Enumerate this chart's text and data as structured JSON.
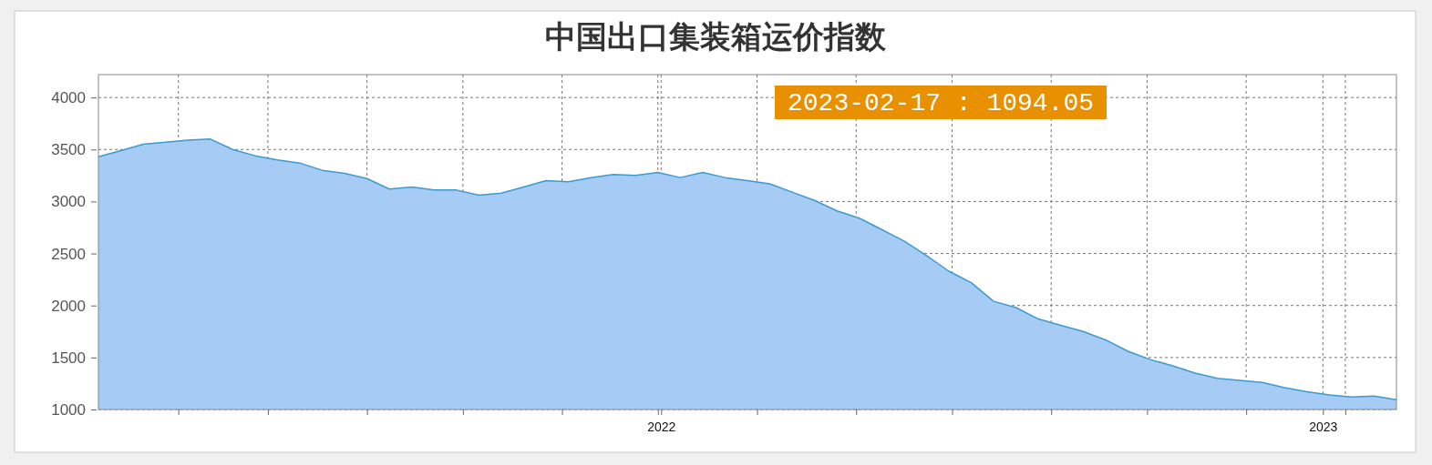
{
  "chart_data": {
    "type": "area",
    "title": "中国出口集装箱运价指数",
    "x": [
      "2022-01-07",
      "2022-01-14",
      "2022-01-21",
      "2022-01-28",
      "2022-02-04",
      "2022-02-11",
      "2022-02-18",
      "2022-02-25",
      "2022-03-04",
      "2022-03-11",
      "2022-03-18",
      "2022-03-25",
      "2022-04-01",
      "2022-04-08",
      "2022-04-15",
      "2022-04-22",
      "2022-04-29",
      "2022-05-06",
      "2022-05-13",
      "2022-05-20",
      "2022-05-27",
      "2022-06-03",
      "2022-06-10",
      "2022-06-17",
      "2022-06-24",
      "2022-07-01",
      "2022-07-08",
      "2022-07-15",
      "2022-07-22",
      "2022-07-29",
      "2022-08-05",
      "2022-08-12",
      "2022-08-19",
      "2022-08-26",
      "2022-09-02",
      "2022-09-09",
      "2022-09-16",
      "2022-09-23",
      "2022-09-30",
      "2022-10-07",
      "2022-10-14",
      "2022-10-21",
      "2022-10-28",
      "2022-11-04",
      "2022-11-11",
      "2022-11-18",
      "2022-11-25",
      "2022-12-02",
      "2022-12-09",
      "2022-12-16",
      "2022-12-23",
      "2022-12-30",
      "2023-01-06",
      "2023-01-13",
      "2023-01-20",
      "2023-01-27",
      "2023-02-03",
      "2023-02-10",
      "2023-02-17"
    ],
    "series": [
      {
        "color": "#3d9ad1",
        "values": [
          3430,
          3490,
          3550,
          3570,
          3590,
          3600,
          3500,
          3440,
          3400,
          3370,
          3300,
          3270,
          3220,
          3120,
          3140,
          3110,
          3110,
          3060,
          3080,
          3140,
          3200,
          3190,
          3230,
          3260,
          3250,
          3280,
          3230,
          3280,
          3230,
          3200,
          3170,
          3090,
          3010,
          2910,
          2840,
          2730,
          2620,
          2480,
          2330,
          2220,
          2040,
          1980,
          1870,
          1810,
          1750,
          1670,
          1560,
          1480,
          1420,
          1350,
          1300,
          1280,
          1260,
          1210,
          1170,
          1140,
          1120,
          1130,
          1094.05
        ]
      }
    ],
    "xlim": [
      "2022-01-07",
      "2023-02-17"
    ],
    "xticks": [
      {
        "value": "2022-02-01",
        "label": null
      },
      {
        "value": "2022-03-01",
        "label": null
      },
      {
        "value": "2022-04-01",
        "label": null
      },
      {
        "value": "2022-05-01",
        "label": null
      },
      {
        "value": "2022-06-01",
        "label": null
      },
      {
        "value": "2022-07-01",
        "label": null
      },
      {
        "value": "2022-07-02",
        "label": "2022"
      },
      {
        "value": "2022-08-01",
        "label": null
      },
      {
        "value": "2022-09-01",
        "label": null
      },
      {
        "value": "2022-10-01",
        "label": null
      },
      {
        "value": "2022-11-01",
        "label": null
      },
      {
        "value": "2022-12-01",
        "label": null
      },
      {
        "value": "2023-01-01",
        "label": null
      },
      {
        "value": "2023-01-25",
        "label": "2023"
      },
      {
        "value": "2023-02-01",
        "label": null
      }
    ],
    "ylim": [
      1000,
      4220
    ],
    "yticks": [
      1000,
      1500,
      2000,
      2500,
      3000,
      3500,
      4000
    ],
    "grid": true,
    "annotations": [
      "2023-02-17 : 1094.05"
    ]
  }
}
